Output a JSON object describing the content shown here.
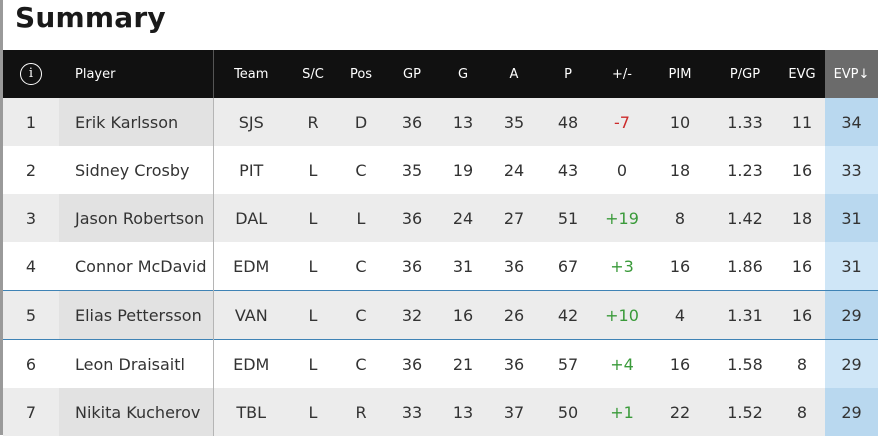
{
  "page": {
    "title": "Summary"
  },
  "table": {
    "columns": {
      "info": "i",
      "player": "Player",
      "team": "Team",
      "sc": "S/C",
      "pos": "Pos",
      "gp": "GP",
      "g": "G",
      "a": "A",
      "p": "P",
      "pm": "+/-",
      "pim": "PIM",
      "pgp": "P/GP",
      "evg": "EVG",
      "evp": "EVP↓"
    },
    "rows": [
      {
        "rank": "1",
        "player": "Erik Karlsson",
        "team": "SJS",
        "sc": "R",
        "pos": "D",
        "gp": "36",
        "g": "13",
        "a": "35",
        "p": "48",
        "pm": "-7",
        "pim": "10",
        "pgp": "1.33",
        "evg": "11",
        "evp": "34"
      },
      {
        "rank": "2",
        "player": "Sidney Crosby",
        "team": "PIT",
        "sc": "L",
        "pos": "C",
        "gp": "35",
        "g": "19",
        "a": "24",
        "p": "43",
        "pm": "0",
        "pim": "18",
        "pgp": "1.23",
        "evg": "16",
        "evp": "33"
      },
      {
        "rank": "3",
        "player": "Jason Robertson",
        "team": "DAL",
        "sc": "L",
        "pos": "L",
        "gp": "36",
        "g": "24",
        "a": "27",
        "p": "51",
        "pm": "+19",
        "pim": "8",
        "pgp": "1.42",
        "evg": "18",
        "evp": "31"
      },
      {
        "rank": "4",
        "player": "Connor McDavid",
        "team": "EDM",
        "sc": "L",
        "pos": "C",
        "gp": "36",
        "g": "31",
        "a": "36",
        "p": "67",
        "pm": "+3",
        "pim": "16",
        "pgp": "1.86",
        "evg": "16",
        "evp": "31"
      },
      {
        "rank": "5",
        "player": "Elias Pettersson",
        "team": "VAN",
        "sc": "L",
        "pos": "C",
        "gp": "32",
        "g": "16",
        "a": "26",
        "p": "42",
        "pm": "+10",
        "pim": "4",
        "pgp": "1.31",
        "evg": "16",
        "evp": "29"
      },
      {
        "rank": "6",
        "player": "Leon Draisaitl",
        "team": "EDM",
        "sc": "L",
        "pos": "C",
        "gp": "36",
        "g": "21",
        "a": "36",
        "p": "57",
        "pm": "+4",
        "pim": "16",
        "pgp": "1.58",
        "evg": "8",
        "evp": "29"
      },
      {
        "rank": "7",
        "player": "Nikita Kucherov",
        "team": "TBL",
        "sc": "L",
        "pos": "R",
        "gp": "33",
        "g": "13",
        "a": "37",
        "p": "50",
        "pm": "+1",
        "pim": "22",
        "pgp": "1.52",
        "evg": "8",
        "evp": "29"
      }
    ]
  },
  "colors": {
    "header_bg": "#111111",
    "sorted_header_bg": "#6b6b6b",
    "sorted_column_bg": "#cfe6f7",
    "negative": "#cc2a2a",
    "positive": "#3a9a3a"
  },
  "icons": {
    "info": "info-circle-icon"
  }
}
